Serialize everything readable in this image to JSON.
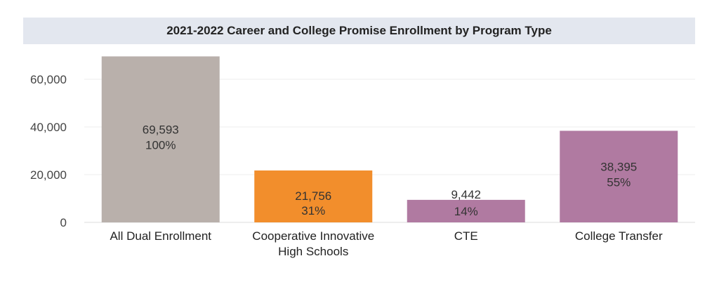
{
  "chart_data": {
    "type": "bar",
    "title": "2021-2022 Career and College Promise Enrollment by Program Type",
    "categories": [
      [
        "All Dual Enrollment"
      ],
      [
        "Cooperative Innovative",
        "High Schools"
      ],
      [
        "CTE"
      ],
      [
        "College Transfer"
      ]
    ],
    "values": [
      69593,
      21756,
      9442,
      38395
    ],
    "value_labels": [
      "69,593",
      "21,756",
      "9,442",
      "38,395"
    ],
    "percent_labels": [
      "100%",
      "31%",
      "14%",
      "55%"
    ],
    "colors": [
      "#b9b0ab",
      "#f28e2c",
      "#b07aa1",
      "#b07aa1"
    ],
    "yticks": [
      0,
      20000,
      40000,
      60000
    ],
    "ytick_labels": [
      "0",
      "20,000",
      "40,000",
      "60,000"
    ],
    "ylim": [
      0,
      72000
    ],
    "grid": true
  }
}
